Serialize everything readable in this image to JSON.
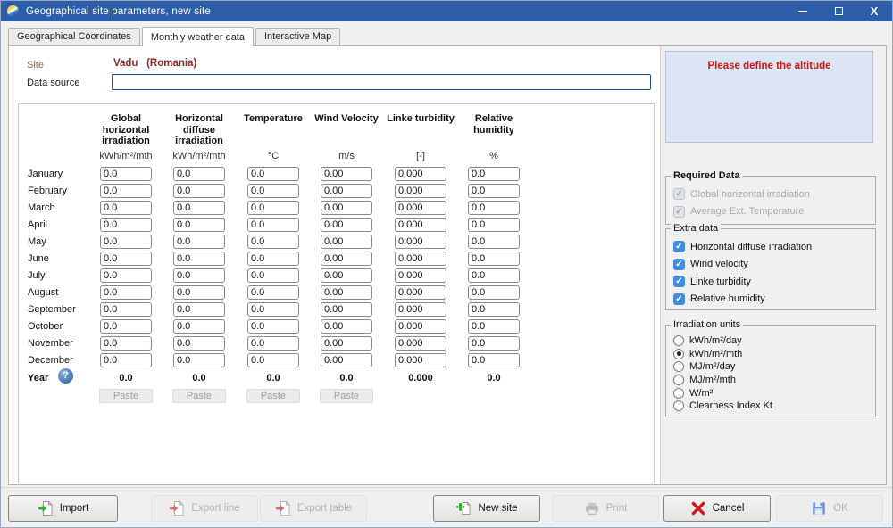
{
  "window": {
    "title": "Geographical site parameters, new site",
    "titlebar_color": "#2b5da9"
  },
  "tabs": [
    {
      "label": "Geographical Coordinates",
      "active": false
    },
    {
      "label": "Monthly weather data",
      "active": true
    },
    {
      "label": "Interactive Map",
      "active": false
    }
  ],
  "site": {
    "site_label": "Site",
    "site_value": "Vadu   (Romania)",
    "site_value_color": "#8e2727",
    "data_source_label": "Data source",
    "data_source_value": ""
  },
  "weather_table": {
    "months": [
      "January",
      "February",
      "March",
      "April",
      "May",
      "June",
      "July",
      "August",
      "September",
      "October",
      "November",
      "December"
    ],
    "columns": [
      {
        "title": "Global horizontal irradiation",
        "unit": "kWh/m²/mth",
        "cell_value": "0.0",
        "year_value": "0.0",
        "paste": true
      },
      {
        "title": "Horizontal diffuse irradiation",
        "unit": "kWh/m²/mth",
        "cell_value": "0.0",
        "year_value": "0.0",
        "paste": true
      },
      {
        "title": "Temperature",
        "unit": "°C",
        "cell_value": "0.0",
        "year_value": "0.0",
        "paste": true
      },
      {
        "title": "Wind Velocity",
        "unit": "m/s",
        "cell_value": "0.00",
        "year_value": "0.0",
        "paste": true
      },
      {
        "title": "Linke turbidity",
        "unit": "[-]",
        "cell_value": "0.000",
        "year_value": "0.000",
        "paste": false
      },
      {
        "title": "Relative humidity",
        "unit": "%",
        "cell_value": "0.0",
        "year_value": "0.0",
        "paste": false
      }
    ],
    "year_label": "Year",
    "help_icon": "?",
    "paste_label": "Paste"
  },
  "right_panel": {
    "alert_message": "Please define the altitude",
    "alert_color": "#cf1616",
    "required_data": {
      "title": "Required Data",
      "items": [
        {
          "label": "Global horizontal irradiation",
          "checked": true,
          "enabled": false
        },
        {
          "label": "Average Ext. Temperature",
          "checked": true,
          "enabled": false
        }
      ]
    },
    "extra_data": {
      "title": "Extra data",
      "items": [
        {
          "label": "Horizontal diffuse irradiation",
          "checked": true,
          "enabled": true
        },
        {
          "label": "Wind velocity",
          "checked": true,
          "enabled": true
        },
        {
          "label": "Linke turbidity",
          "checked": true,
          "enabled": true
        },
        {
          "label": "Relative humidity",
          "checked": true,
          "enabled": true
        }
      ],
      "checkbox_color": "#3f8ede"
    },
    "irradiation_units": {
      "title": "Irradiation units",
      "options": [
        {
          "label": "kWh/m²/day",
          "selected": false
        },
        {
          "label": "kWh/m²/mth",
          "selected": true
        },
        {
          "label": "MJ/m²/day",
          "selected": false
        },
        {
          "label": "MJ/m²/mth",
          "selected": false
        },
        {
          "label": "W/m²",
          "selected": false
        },
        {
          "label": "Clearness Index Kt",
          "selected": false
        }
      ]
    }
  },
  "footer": {
    "buttons": [
      {
        "label": "Import",
        "icon": "import",
        "enabled": true
      },
      {
        "label": "Export line",
        "icon": "export",
        "enabled": false
      },
      {
        "label": "Export table",
        "icon": "export",
        "enabled": false
      },
      {
        "label": "New site",
        "icon": "new-site",
        "enabled": true
      },
      {
        "label": "Print",
        "icon": "print",
        "enabled": false
      },
      {
        "label": "Cancel",
        "icon": "cancel",
        "enabled": true
      },
      {
        "label": "OK",
        "icon": "ok",
        "enabled": false
      }
    ]
  }
}
